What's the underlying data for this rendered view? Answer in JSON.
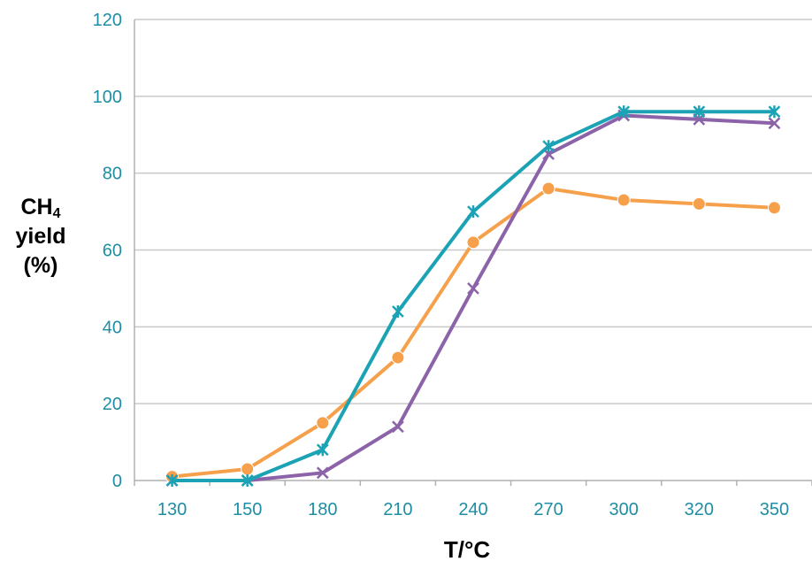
{
  "chart_data": {
    "type": "line",
    "title": "",
    "xlabel_main": "T/°C",
    "ylabel_parts": {
      "main": "CH",
      "sub": "4",
      "line2": "yield",
      "line3": "(%)"
    },
    "categories": [
      "130",
      "150",
      "180",
      "210",
      "240",
      "270",
      "300",
      "320",
      "350"
    ],
    "yticks": [
      "0",
      "20",
      "40",
      "60",
      "80",
      "100",
      "120"
    ],
    "ylim": [
      0,
      120
    ],
    "grid": "horizontal",
    "legend": "none",
    "series": [
      {
        "color": "#f7a04b",
        "marker": "circle",
        "values": [
          1,
          3,
          15,
          32,
          62,
          76,
          73,
          72,
          71
        ]
      },
      {
        "color": "#8c62a9",
        "marker": "x",
        "values": [
          0,
          0,
          2,
          14,
          50,
          85,
          95,
          94,
          93
        ]
      },
      {
        "color": "#1ba3b5",
        "marker": "star",
        "values": [
          0,
          0,
          8,
          44,
          70,
          87,
          96,
          96,
          96
        ]
      }
    ],
    "tick_color": "#1d8ea3"
  }
}
